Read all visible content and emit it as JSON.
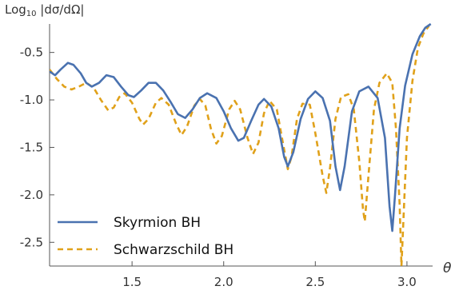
{
  "chart_data": {
    "type": "line",
    "ylabel": "Log₁₀ |dσ/dΩ|",
    "ylabel_prefix": "Log",
    "ylabel_subscript": "10",
    "ylabel_rest": " |dσ/dΩ|",
    "xlabel": "θ",
    "xlim": [
      1.05,
      3.14
    ],
    "ylim": [
      -2.75,
      -0.2
    ],
    "x_ticks": [
      1.5,
      2.0,
      2.5,
      3.0
    ],
    "x_tick_labels": [
      "1.5",
      "2.0",
      "2.5",
      "3.0"
    ],
    "y_ticks": [
      -0.5,
      -1.0,
      -1.5,
      -2.0,
      -2.5
    ],
    "y_tick_labels": [
      "-0.5",
      "-1.0",
      "-1.5",
      "-2.0",
      "-2.5"
    ],
    "grid": false,
    "legend_position": "bottom-left",
    "series": [
      {
        "name": "Skyrmion BH",
        "color": "#4a72b0",
        "style": "solid",
        "points": [
          [
            1.05,
            -0.7
          ],
          [
            1.08,
            -0.74
          ],
          [
            1.11,
            -0.68
          ],
          [
            1.15,
            -0.61
          ],
          [
            1.18,
            -0.63
          ],
          [
            1.22,
            -0.72
          ],
          [
            1.25,
            -0.82
          ],
          [
            1.28,
            -0.86
          ],
          [
            1.32,
            -0.82
          ],
          [
            1.36,
            -0.74
          ],
          [
            1.4,
            -0.76
          ],
          [
            1.44,
            -0.86
          ],
          [
            1.48,
            -0.95
          ],
          [
            1.51,
            -0.97
          ],
          [
            1.55,
            -0.9
          ],
          [
            1.59,
            -0.82
          ],
          [
            1.63,
            -0.82
          ],
          [
            1.67,
            -0.9
          ],
          [
            1.71,
            -1.02
          ],
          [
            1.75,
            -1.15
          ],
          [
            1.79,
            -1.19
          ],
          [
            1.83,
            -1.1
          ],
          [
            1.87,
            -0.98
          ],
          [
            1.91,
            -0.93
          ],
          [
            1.96,
            -0.98
          ],
          [
            2.0,
            -1.12
          ],
          [
            2.04,
            -1.3
          ],
          [
            2.08,
            -1.43
          ],
          [
            2.11,
            -1.4
          ],
          [
            2.15,
            -1.22
          ],
          [
            2.19,
            -1.05
          ],
          [
            2.22,
            -0.99
          ],
          [
            2.26,
            -1.07
          ],
          [
            2.3,
            -1.3
          ],
          [
            2.33,
            -1.6
          ],
          [
            2.35,
            -1.7
          ],
          [
            2.38,
            -1.55
          ],
          [
            2.42,
            -1.2
          ],
          [
            2.46,
            -0.99
          ],
          [
            2.5,
            -0.91
          ],
          [
            2.54,
            -0.98
          ],
          [
            2.58,
            -1.22
          ],
          [
            2.61,
            -1.7
          ],
          [
            2.635,
            -1.95
          ],
          [
            2.66,
            -1.7
          ],
          [
            2.7,
            -1.12
          ],
          [
            2.74,
            -0.91
          ],
          [
            2.79,
            -0.86
          ],
          [
            2.84,
            -0.98
          ],
          [
            2.88,
            -1.4
          ],
          [
            2.905,
            -2.12
          ],
          [
            2.92,
            -2.38
          ],
          [
            2.935,
            -2.0
          ],
          [
            2.96,
            -1.3
          ],
          [
            2.99,
            -0.85
          ],
          [
            3.03,
            -0.52
          ],
          [
            3.07,
            -0.33
          ],
          [
            3.1,
            -0.24
          ],
          [
            3.13,
            -0.2
          ]
        ]
      },
      {
        "name": "Schwarzschild BH",
        "color": "#e0a11a",
        "style": "dashed",
        "points": [
          [
            1.05,
            -0.68
          ],
          [
            1.09,
            -0.78
          ],
          [
            1.13,
            -0.86
          ],
          [
            1.17,
            -0.89
          ],
          [
            1.21,
            -0.86
          ],
          [
            1.25,
            -0.82
          ],
          [
            1.29,
            -0.87
          ],
          [
            1.33,
            -1.0
          ],
          [
            1.37,
            -1.11
          ],
          [
            1.4,
            -1.08
          ],
          [
            1.43,
            -0.97
          ],
          [
            1.46,
            -0.93
          ],
          [
            1.5,
            -1.03
          ],
          [
            1.54,
            -1.2
          ],
          [
            1.56,
            -1.26
          ],
          [
            1.59,
            -1.2
          ],
          [
            1.63,
            -1.03
          ],
          [
            1.66,
            -0.98
          ],
          [
            1.7,
            -1.05
          ],
          [
            1.74,
            -1.25
          ],
          [
            1.77,
            -1.37
          ],
          [
            1.8,
            -1.28
          ],
          [
            1.84,
            -1.06
          ],
          [
            1.87,
            -0.99
          ],
          [
            1.9,
            -1.06
          ],
          [
            1.93,
            -1.3
          ],
          [
            1.96,
            -1.46
          ],
          [
            1.99,
            -1.38
          ],
          [
            2.03,
            -1.1
          ],
          [
            2.06,
            -1.01
          ],
          [
            2.09,
            -1.1
          ],
          [
            2.13,
            -1.4
          ],
          [
            2.16,
            -1.57
          ],
          [
            2.19,
            -1.45
          ],
          [
            2.22,
            -1.14
          ],
          [
            2.25,
            -1.01
          ],
          [
            2.29,
            -1.1
          ],
          [
            2.32,
            -1.42
          ],
          [
            2.35,
            -1.73
          ],
          [
            2.37,
            -1.6
          ],
          [
            2.4,
            -1.2
          ],
          [
            2.43,
            -1.04
          ],
          [
            2.47,
            -1.05
          ],
          [
            2.5,
            -1.35
          ],
          [
            2.54,
            -1.8
          ],
          [
            2.56,
            -1.98
          ],
          [
            2.58,
            -1.72
          ],
          [
            2.61,
            -1.2
          ],
          [
            2.64,
            -0.97
          ],
          [
            2.68,
            -0.94
          ],
          [
            2.71,
            -1.1
          ],
          [
            2.74,
            -1.65
          ],
          [
            2.76,
            -2.15
          ],
          [
            2.77,
            -2.28
          ],
          [
            2.79,
            -1.8
          ],
          [
            2.82,
            -1.1
          ],
          [
            2.85,
            -0.82
          ],
          [
            2.89,
            -0.72
          ],
          [
            2.92,
            -0.82
          ],
          [
            2.94,
            -1.3
          ],
          [
            2.96,
            -2.1
          ],
          [
            2.97,
            -2.75
          ],
          [
            2.98,
            -2.3
          ],
          [
            3.0,
            -1.4
          ],
          [
            3.03,
            -0.8
          ],
          [
            3.06,
            -0.45
          ],
          [
            3.09,
            -0.3
          ],
          [
            3.12,
            -0.22
          ]
        ]
      }
    ]
  }
}
